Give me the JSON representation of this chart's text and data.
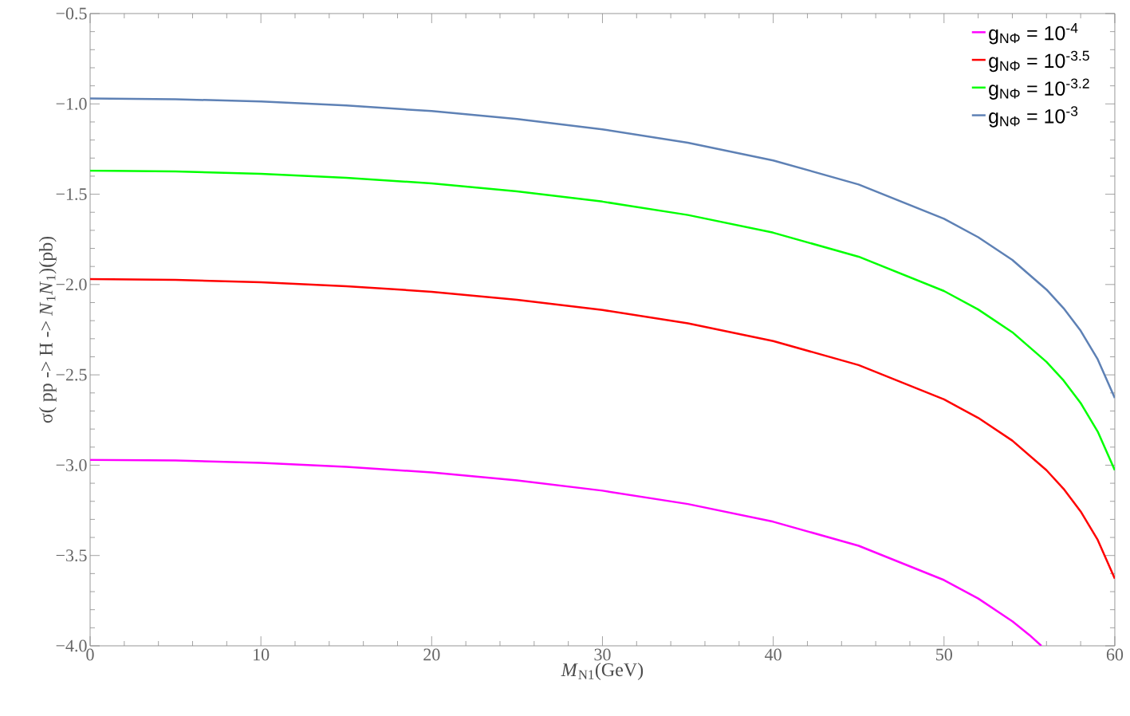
{
  "chart_data": {
    "type": "line",
    "xlabel": "*M*$_{N1}$(GeV)",
    "ylabel": "σ( pp -> H -> *N*$_{1}$*N*$_{1}$)(pb)",
    "x": [
      0,
      5,
      10,
      15,
      20,
      25,
      30,
      35,
      40,
      45,
      50,
      52,
      54,
      56,
      57,
      58,
      59,
      60
    ],
    "series": [
      {
        "name": "g$_{NΦ}$ = 10$^{-4}$",
        "color": "#ff00ff",
        "x": [
          0,
          5,
          10,
          15,
          20,
          25,
          30,
          35,
          40,
          45,
          50,
          52,
          54,
          55,
          55.7
        ],
        "values": [
          -2.97,
          -2.974,
          -2.987,
          -3.009,
          -3.04,
          -3.084,
          -3.141,
          -3.215,
          -3.313,
          -3.446,
          -3.636,
          -3.738,
          -3.864,
          -3.94,
          -4.0
        ]
      },
      {
        "name": "g$_{NΦ}$ = 10$^{-3.5}$",
        "color": "#ff0000",
        "values": [
          -1.97,
          -1.974,
          -1.987,
          -2.009,
          -2.04,
          -2.084,
          -2.141,
          -2.215,
          -2.313,
          -2.446,
          -2.636,
          -2.738,
          -2.864,
          -3.028,
          -3.131,
          -3.256,
          -3.414,
          -3.628
        ]
      },
      {
        "name": "g$_{NΦ}$ = 10$^{-3.2}$",
        "color": "#00ff00",
        "values": [
          -1.37,
          -1.374,
          -1.387,
          -1.409,
          -1.44,
          -1.484,
          -1.541,
          -1.615,
          -1.713,
          -1.846,
          -2.036,
          -2.138,
          -2.264,
          -2.428,
          -2.531,
          -2.656,
          -2.814,
          -3.028
        ]
      },
      {
        "name": "g$_{NΦ}$ = 10$^{-3}$",
        "color": "#5e81b5",
        "values": [
          -0.97,
          -0.974,
          -0.987,
          -1.009,
          -1.04,
          -1.084,
          -1.141,
          -1.215,
          -1.313,
          -1.446,
          -1.636,
          -1.738,
          -1.864,
          -2.028,
          -2.131,
          -2.256,
          -2.414,
          -2.628
        ]
      }
    ],
    "xlim": [
      0,
      60
    ],
    "ylim": [
      -4.0,
      -0.5
    ],
    "xticks": [
      0,
      10,
      20,
      30,
      40,
      50,
      60
    ],
    "yticks": [
      {
        "value": -4.0,
        "label": "−4.0"
      },
      {
        "value": -3.5,
        "label": "−3.5"
      },
      {
        "value": -3.0,
        "label": "−3.0"
      },
      {
        "value": -2.5,
        "label": "−2.5"
      },
      {
        "value": -2.0,
        "label": "−2.0"
      },
      {
        "value": -1.5,
        "label": "−1.5"
      },
      {
        "value": -1.0,
        "label": "−1.0"
      },
      {
        "value": -0.5,
        "label": "−0.5"
      }
    ],
    "grid": false,
    "legend": "top right",
    "marker": "none",
    "line_style": "solid"
  }
}
